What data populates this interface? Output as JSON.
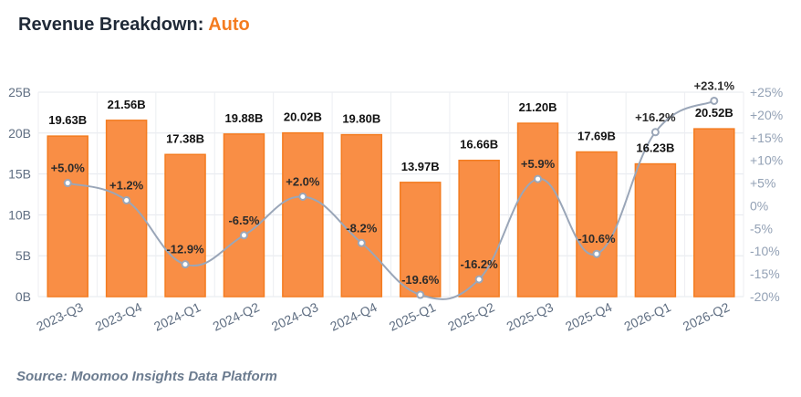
{
  "header": {
    "title": "Revenue Breakdown:",
    "segment": "Auto"
  },
  "source": "Source: Moomoo Insights Data Platform",
  "colors": {
    "bar_fill": "#f98e45",
    "bar_stroke": "#f47c20",
    "line": "#9aa6b8",
    "accent": "#f47c20"
  },
  "chart_data": {
    "type": "bar",
    "categories": [
      "2023-Q3",
      "2023-Q4",
      "2024-Q1",
      "2024-Q2",
      "2024-Q3",
      "2024-Q4",
      "2025-Q1",
      "2025-Q2",
      "2025-Q3",
      "2025-Q4",
      "2026-Q1",
      "2026-Q2"
    ],
    "series": [
      {
        "type": "bar",
        "axis": "left",
        "values": [
          19.63,
          21.56,
          17.38,
          19.88,
          20.02,
          19.8,
          13.97,
          16.66,
          21.2,
          17.69,
          16.23,
          20.52
        ],
        "labels": [
          "19.63B",
          "21.56B",
          "17.38B",
          "19.88B",
          "20.02B",
          "19.80B",
          "13.97B",
          "16.66B",
          "21.20B",
          "17.69B",
          "16.23B",
          "20.52B"
        ]
      },
      {
        "type": "line",
        "axis": "right",
        "values": [
          5.0,
          1.2,
          -12.9,
          -6.5,
          2.0,
          -8.2,
          -19.6,
          -16.2,
          5.9,
          -10.6,
          16.2,
          23.1
        ],
        "labels": [
          "+5.0%",
          "+1.2%",
          "-12.9%",
          "-6.5%",
          "+2.0%",
          "-8.2%",
          "-19.6%",
          "-16.2%",
          "+5.9%",
          "-10.6%",
          "+16.2%",
          "+23.1%"
        ]
      }
    ],
    "y_left": {
      "ylim": [
        0,
        25
      ],
      "ticks": [
        "0B",
        "5B",
        "10B",
        "15B",
        "20B",
        "25B"
      ]
    },
    "y_right": {
      "ylim": [
        -20,
        25
      ],
      "ticks": [
        "-20%",
        "-15%",
        "-10%",
        "-5%",
        "0%",
        "+5%",
        "+10%",
        "+15%",
        "+20%",
        "+25%"
      ]
    },
    "grid": true
  }
}
